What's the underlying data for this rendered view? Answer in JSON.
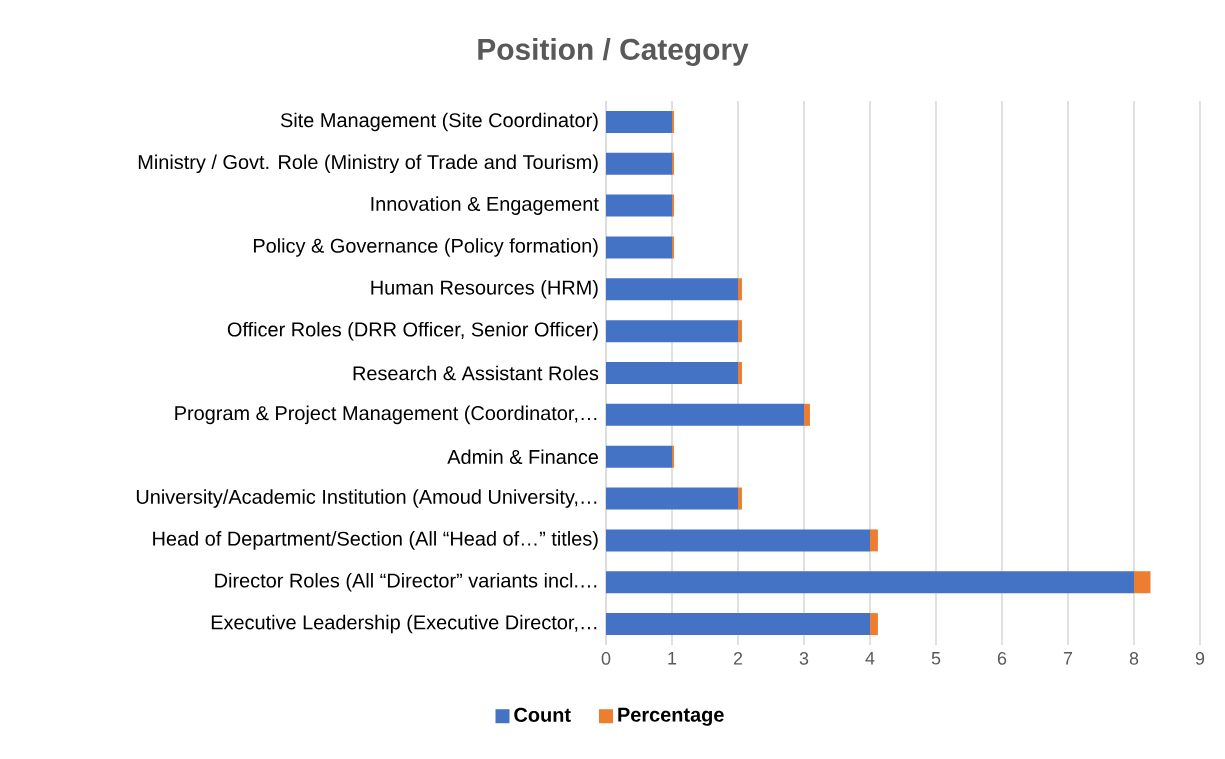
{
  "chart_data": {
    "type": "bar",
    "orientation": "horizontal",
    "stacked": true,
    "title": "Position / Category",
    "categories": [
      "Site Management (Site Coordinator)",
      "Ministry / Govt. Role (Ministry of Trade and Tourism)",
      "Innovation & Engagement",
      "Policy & Governance (Policy formation)",
      "Human Resources (HRM)",
      "Officer Roles (DRR Officer, Senior Officer)",
      "Research & Assistant Roles",
      "Program & Project Management (Coordinator,…",
      "Admin & Finance",
      "University/Academic Institution (Amoud University,…",
      "Head of Department/Section (All “Head of…” titles)",
      "Director Roles (All “Director” variants incl.…",
      "Executive Leadership (Executive Director,…"
    ],
    "series": [
      {
        "name": "Count",
        "color": "#4472c4",
        "values": [
          1,
          1,
          1,
          1,
          2,
          2,
          2,
          3,
          1,
          2,
          4,
          8,
          4
        ]
      },
      {
        "name": "Percentage",
        "color": "#ed7d31",
        "values": [
          0.03,
          0.03,
          0.03,
          0.03,
          0.06,
          0.06,
          0.06,
          0.09,
          0.03,
          0.06,
          0.12,
          0.25,
          0.12
        ]
      }
    ],
    "xlim": [
      0,
      9
    ],
    "xticks": [
      0,
      1,
      2,
      3,
      4,
      5,
      6,
      7,
      8,
      9
    ],
    "grid": "x",
    "legend": "bottom"
  }
}
